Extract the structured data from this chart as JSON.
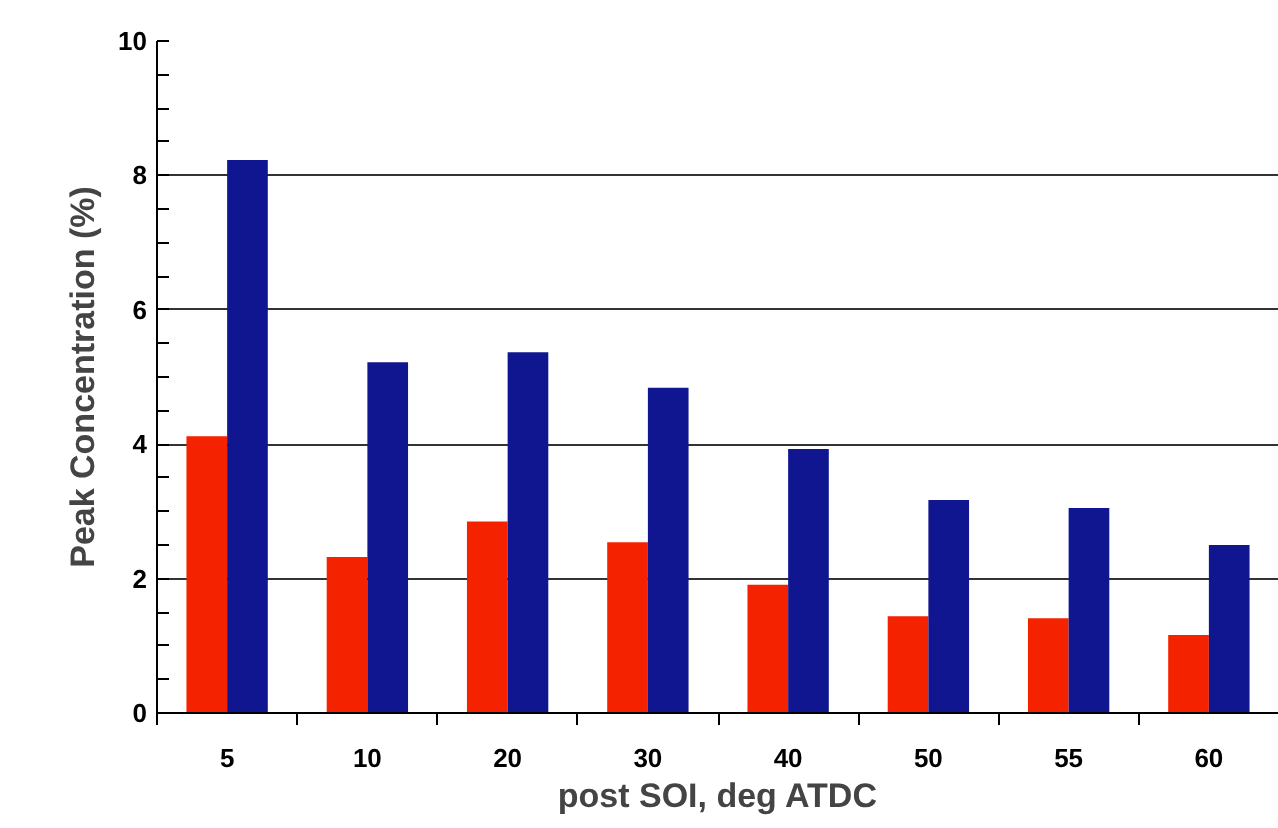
{
  "chart_data": {
    "type": "bar",
    "xlabel": "post SOI, deg ATDC",
    "ylabel": "Peak Concentration (%)",
    "categories": [
      "5",
      "10",
      "20",
      "30",
      "40",
      "50",
      "55",
      "60"
    ],
    "series": [
      {
        "color": "#f52200",
        "values": [
          4.12,
          2.32,
          2.85,
          2.54,
          1.91,
          1.44,
          1.41,
          1.16
        ]
      },
      {
        "color": "#10168f",
        "values": [
          8.23,
          5.22,
          5.37,
          4.84,
          3.93,
          3.17,
          3.05,
          2.5
        ]
      }
    ],
    "ylim": [
      0,
      10
    ],
    "yticks": [
      0,
      {
        "value": 0.5,
        "label": null
      },
      {
        "value": 1,
        "label": null
      },
      {
        "value": 1.5,
        "label": null
      },
      2,
      {
        "value": 2.5,
        "label": null
      },
      {
        "value": 3,
        "label": null
      },
      {
        "value": 3.5,
        "label": null
      },
      4,
      {
        "value": 4.5,
        "label": null
      },
      {
        "value": 5,
        "label": null
      },
      {
        "value": 5.5,
        "label": null
      },
      6,
      {
        "value": 6.5,
        "label": null
      },
      {
        "value": 7,
        "label": null
      },
      {
        "value": 7.5,
        "label": null
      },
      8,
      {
        "value": 8.5,
        "label": null
      },
      {
        "value": 9,
        "label": null
      },
      {
        "value": 9.5,
        "label": null
      },
      10
    ],
    "grid": "y"
  }
}
